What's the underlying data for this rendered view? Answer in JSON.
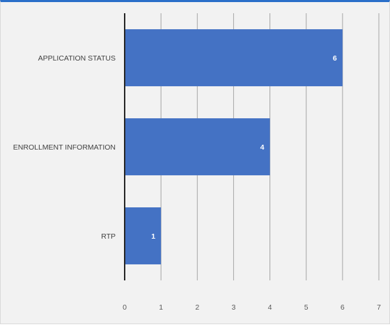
{
  "chart_data": {
    "type": "bar",
    "orientation": "horizontal",
    "categories": [
      "APPLICATION STATUS",
      "ENROLLMENT INFORMATION",
      "RTP"
    ],
    "values": [
      6,
      4,
      1
    ],
    "title": "",
    "xlabel": "",
    "ylabel": "",
    "xlim": [
      0,
      7
    ],
    "x_ticks": [
      "0",
      "1",
      "2",
      "3",
      "4",
      "5",
      "6",
      "7"
    ],
    "grid": "vertical",
    "legend": "none",
    "bar_color": "#4472c4",
    "axis_color": "#262626",
    "grid_color": "#a6a6a6",
    "background_color": "#f2f2f2",
    "accent_color": "#2a6fc9"
  }
}
